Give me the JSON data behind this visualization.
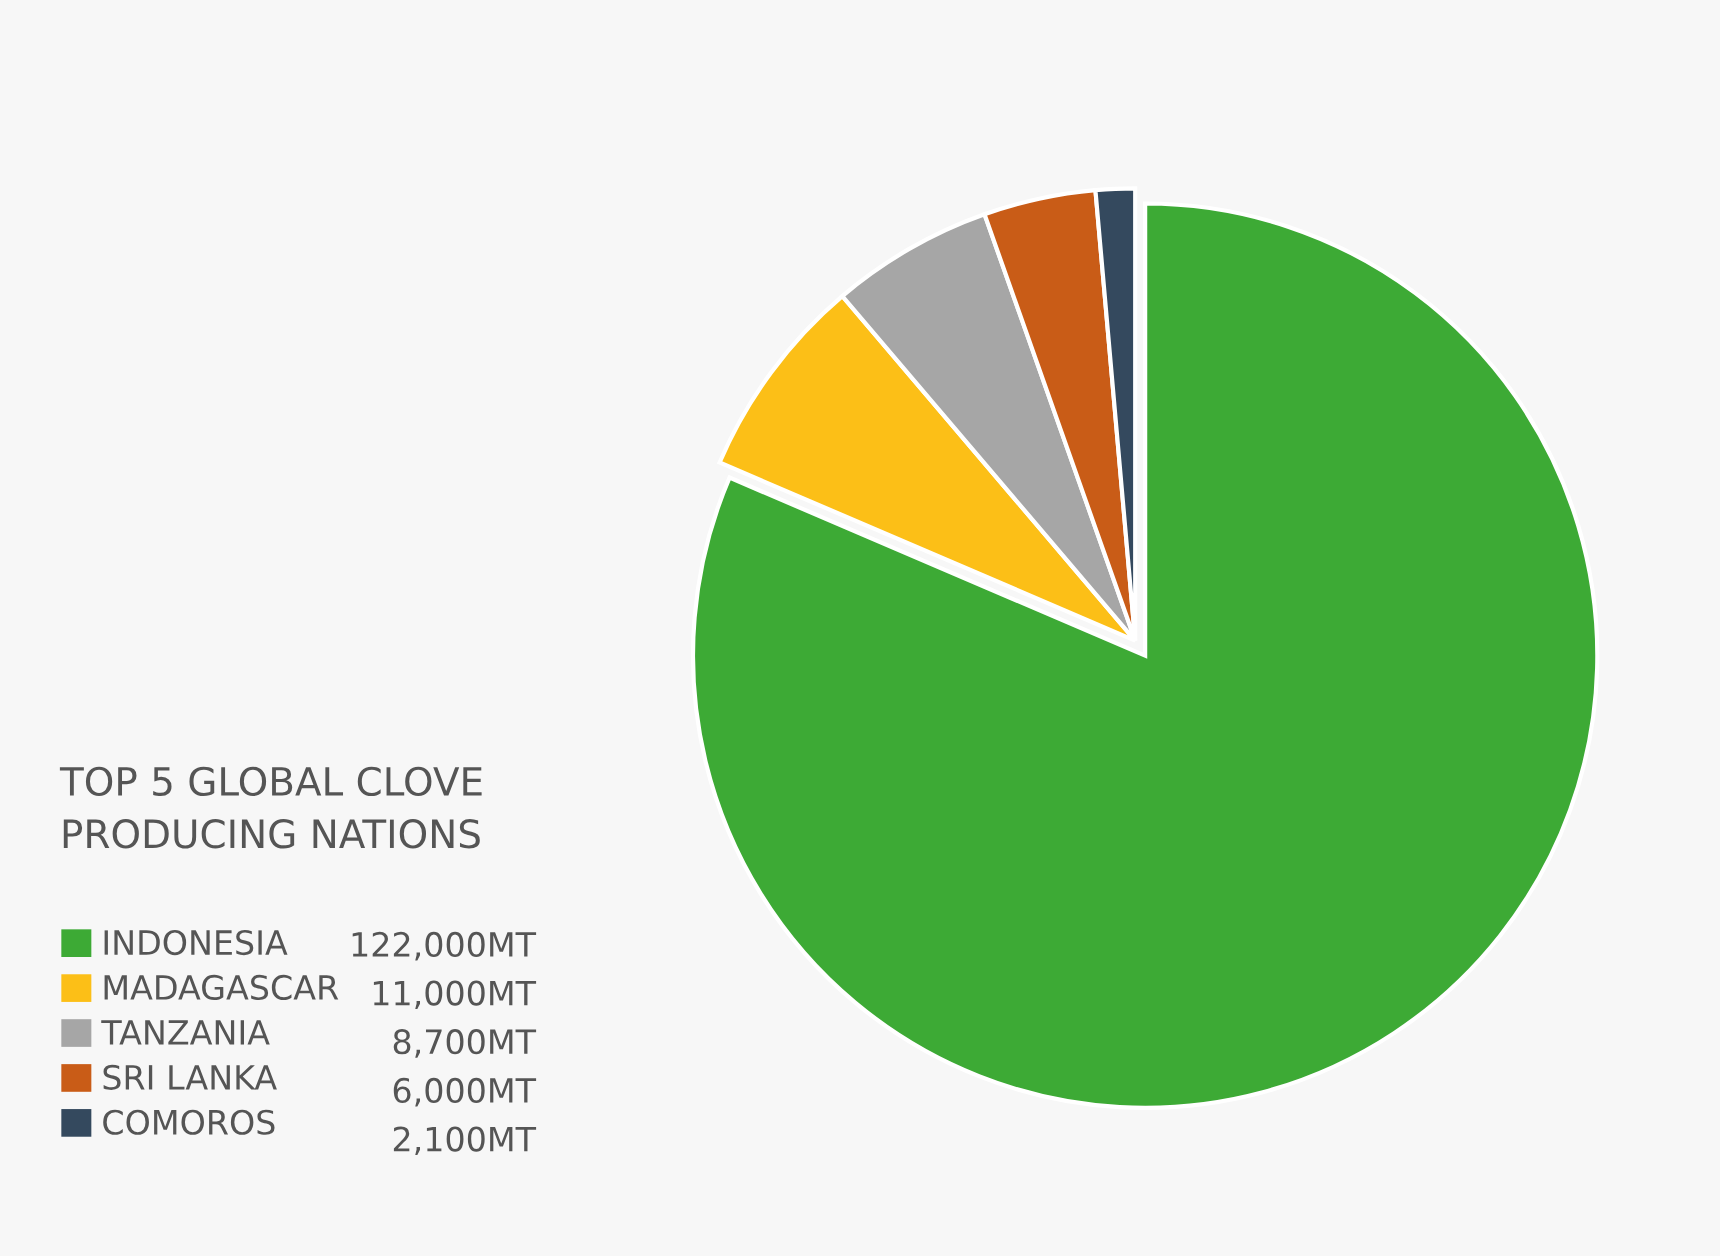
{
  "chart_data": {
    "type": "pie",
    "title": "TOP 5 GLOBAL CLOVE\nPRODUCING NATIONS",
    "categories": [
      "INDONESIA",
      "MADAGASCAR",
      "TANZANIA",
      "SRI LANKA",
      "COMOROS"
    ],
    "values": [
      122000,
      11000,
      8700,
      6000,
      2100
    ],
    "value_labels": [
      "122,000MT",
      "11,000MT",
      "8,700MT",
      "6,000MT",
      "2,100MT"
    ],
    "colors": [
      "#3daa35",
      "#fcbf17",
      "#a6a6a6",
      "#c95c17",
      "#34495e"
    ],
    "legend": "left"
  }
}
